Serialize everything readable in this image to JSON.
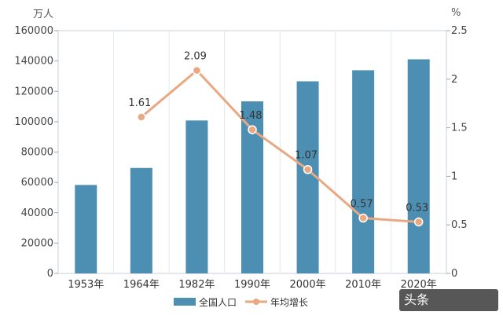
{
  "chart_data": {
    "type": "bar+line",
    "categories": [
      "1953年",
      "1964年",
      "1982年",
      "1990年",
      "2000年",
      "2010年",
      "2020年"
    ],
    "series": [
      {
        "name": "全国人口",
        "type": "bar",
        "axis": "left",
        "values": [
          58300,
          69500,
          100800,
          113400,
          126600,
          133900,
          141100
        ],
        "color": "#4d8fb3"
      },
      {
        "name": "年均增长率",
        "type": "line",
        "axis": "right",
        "values": [
          null,
          1.61,
          2.09,
          1.48,
          1.07,
          0.57,
          0.53
        ],
        "labels": [
          "",
          "1.61",
          "2.09",
          "1.48",
          "1.07",
          "0.57",
          "0.53"
        ],
        "color": "#e8a882"
      }
    ],
    "y_left": {
      "unit": "万人",
      "ylim": [
        0,
        160000
      ],
      "ticks": [
        "0",
        "20000",
        "40000",
        "60000",
        "80000",
        "100000",
        "120000",
        "140000",
        "160000"
      ]
    },
    "y_right": {
      "unit": "%",
      "ylim": [
        0,
        2.5
      ],
      "ticks": [
        "0",
        "0.5",
        "1",
        "1.5",
        "2",
        "2.5"
      ]
    },
    "grid": "vertical",
    "legend": "bottom",
    "legend_items": [
      "全国人口",
      "年均增长"
    ]
  },
  "watermark": "头条"
}
